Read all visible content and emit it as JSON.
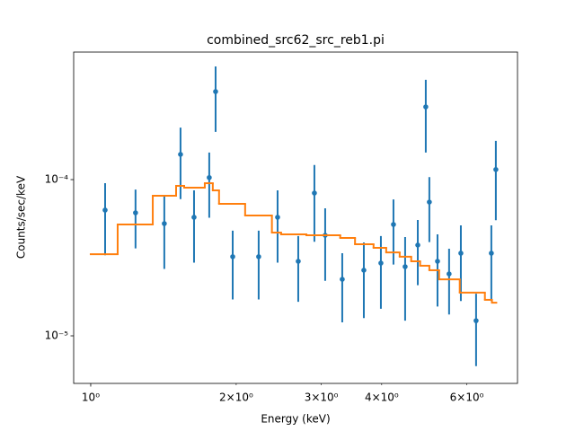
{
  "chart_data": {
    "type": "errorbar",
    "title": "combined_src62_src_reb1.pi",
    "xlabel": "Energy (keV)",
    "ylabel": "Counts/sec/keV",
    "xscale": "log",
    "yscale": "log",
    "xlim": [
      0.922,
      7.64
    ],
    "ylim": [
      4.96e-06,
      0.000655
    ],
    "xticks": [
      {
        "value": 1,
        "label": "10⁰"
      },
      {
        "value": 2,
        "label": "2×10⁰"
      },
      {
        "value": 3,
        "label": "3×10⁰"
      },
      {
        "value": 4,
        "label": "4×10⁰"
      },
      {
        "value": 6,
        "label": "6×10⁰"
      }
    ],
    "yticks": [
      {
        "value": 1e-05,
        "label": "10⁻⁵"
      },
      {
        "value": 0.0001,
        "label": "10⁻⁴"
      }
    ],
    "color": "#1f77b4",
    "x": [
      1.071,
      1.238,
      1.42,
      1.534,
      1.636,
      1.759,
      1.813,
      1.967,
      2.226,
      2.436,
      2.688,
      2.903,
      3.056,
      3.315,
      3.674,
      3.985,
      4.231,
      4.473,
      4.751,
      4.935,
      5.02,
      5.219,
      5.515,
      5.833,
      6.272,
      6.745,
      6.891
    ],
    "values": [
      6.38e-05,
      6.13e-05,
      5.23e-05,
      0.000145,
      5.74e-05,
      0.000103,
      0.000366,
      3.21e-05,
      3.21e-05,
      5.74e-05,
      3e-05,
      8.2e-05,
      4.4e-05,
      2.3e-05,
      2.63e-05,
      2.92e-05,
      5.16e-05,
      2.77e-05,
      3.81e-05,
      0.000292,
      7.18e-05,
      3e-05,
      2.49e-05,
      3.38e-05,
      1.25e-05,
      3.38e-05,
      0.000116
    ],
    "errors": [
      3.1e-05,
      2.5e-05,
      2.55e-05,
      7e-05,
      2.8e-05,
      4.6e-05,
      0.000164,
      1.5e-05,
      1.5e-05,
      2.8e-05,
      1.35e-05,
      4.2e-05,
      2.15e-05,
      1.08e-05,
      1.33e-05,
      1.43e-05,
      2.3e-05,
      1.52e-05,
      1.7e-05,
      0.000143,
      3.2e-05,
      1.46e-05,
      1.12e-05,
      1.71e-05,
      6.1e-06,
      1.71e-05,
      6.1e-05
    ],
    "model_color": "#ff7f0e",
    "model_edges": [
      1.0,
      1.137,
      1.344,
      1.502,
      1.561,
      1.722,
      1.789,
      1.843,
      2.087,
      2.371,
      2.477,
      2.794,
      3.283,
      3.523,
      3.848,
      4.087,
      4.358,
      4.604,
      4.804,
      5.02,
      5.259,
      5.802,
      6.541,
      6.764,
      6.906
    ],
    "model_values": [
      3.33e-05,
      5.16e-05,
      7.88e-05,
      9.12e-05,
      8.88e-05,
      9.48e-05,
      8.53e-05,
      7e-05,
      5.89e-05,
      4.58e-05,
      4.46e-05,
      4.4e-05,
      4.23e-05,
      3.86e-05,
      3.66e-05,
      3.42e-05,
      3.21e-05,
      3e-05,
      2.81e-05,
      2.63e-05,
      2.3e-05,
      1.89e-05,
      1.7e-05,
      1.63e-05
    ]
  }
}
